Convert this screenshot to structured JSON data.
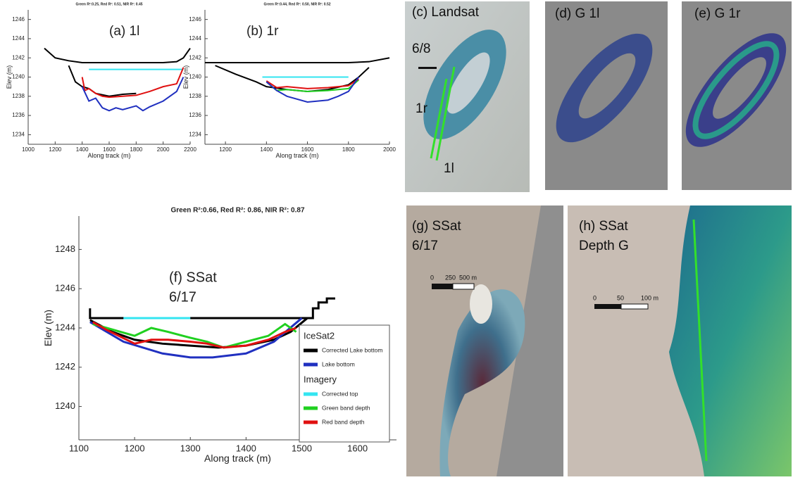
{
  "chart_data": [
    {
      "type": "line",
      "title": "Green R²:0.25, Red R²: 0.51, NIR R²: 0.45",
      "annotation": "(a) 1l",
      "x_label": "Along track (m)",
      "y_label": "Elev (m)",
      "xlim": [
        1000,
        2200
      ],
      "xticks": [
        1000,
        1200,
        1400,
        1600,
        1800,
        2000,
        2200
      ],
      "ylim": [
        1233,
        1247
      ],
      "yticks": [
        1234,
        1236,
        1238,
        1240,
        1242,
        1244,
        1246
      ],
      "series": [
        {
          "color": "#000000",
          "x": [
            1120,
            1200,
            1300,
            1400,
            1500,
            1600,
            1700,
            1800,
            1900,
            2000,
            2100,
            2150,
            2200
          ],
          "values": [
            1243,
            1242,
            1241.7,
            1241.5,
            1241.5,
            1241.5,
            1241.5,
            1241.5,
            1241.5,
            1241.5,
            1241.6,
            1242,
            1243
          ]
        },
        {
          "color": "#000000",
          "x": [
            1300,
            1350,
            1400,
            1450,
            1500,
            1600,
            1700,
            1800
          ],
          "values": [
            1241.2,
            1239.5,
            1239,
            1238.8,
            1238.3,
            1238,
            1238.2,
            1238.3
          ]
        },
        {
          "color": "#33e5f0",
          "x": [
            1450,
            2150
          ],
          "values": [
            1240.8,
            1240.8
          ]
        },
        {
          "color": "#e01010",
          "x": [
            1400,
            1420,
            1450,
            1500,
            1550,
            1600,
            1700,
            1800,
            1900,
            2000,
            2100,
            2150
          ],
          "values": [
            1240,
            1238.6,
            1238.8,
            1238.3,
            1238,
            1237.9,
            1238,
            1238.1,
            1238.5,
            1239,
            1239.3,
            1241
          ]
        },
        {
          "color": "#2030c0",
          "x": [
            1400,
            1450,
            1500,
            1550,
            1600,
            1650,
            1700,
            1800,
            1850,
            1900,
            2000,
            2100,
            2150
          ],
          "values": [
            1239,
            1237.5,
            1237.8,
            1236.8,
            1236.5,
            1236.8,
            1236.6,
            1237,
            1236.5,
            1236.9,
            1237.5,
            1238.5,
            1240
          ]
        }
      ]
    },
    {
      "type": "line",
      "title": "Green R²:0.44, Red R²: 0.50, NIR R²: 0.52",
      "annotation": "(b) 1r",
      "x_label": "Along track (m)",
      "y_label": "Elev (m)",
      "xlim": [
        1100,
        2000
      ],
      "xticks": [
        1200,
        1400,
        1600,
        1800,
        2000
      ],
      "ylim": [
        1233,
        1247
      ],
      "yticks": [
        1234,
        1236,
        1238,
        1240,
        1242,
        1244,
        1246
      ],
      "series": [
        {
          "color": "#000000",
          "x": [
            1100,
            1200,
            1400,
            1600,
            1800,
            1900,
            2000
          ],
          "values": [
            1241.5,
            1241.5,
            1241.5,
            1241.5,
            1241.5,
            1241.6,
            1242
          ]
        },
        {
          "color": "#000000",
          "x": [
            1150,
            1250,
            1350,
            1400,
            1500,
            1600,
            1700,
            1800,
            1850,
            1900
          ],
          "values": [
            1241.2,
            1240.3,
            1239.5,
            1239,
            1238.7,
            1238.5,
            1238.7,
            1239.2,
            1240,
            1241
          ]
        },
        {
          "color": "#33e5f0",
          "x": [
            1380,
            1800
          ],
          "values": [
            1240,
            1240
          ]
        },
        {
          "color": "#20d020",
          "x": [
            1400,
            1450,
            1500,
            1600,
            1700,
            1800,
            1850
          ],
          "values": [
            1239.5,
            1238.6,
            1238.7,
            1238.5,
            1238.6,
            1238.8,
            1239.7
          ]
        },
        {
          "color": "#e01010",
          "x": [
            1400,
            1450,
            1500,
            1600,
            1700,
            1800,
            1850
          ],
          "values": [
            1239.6,
            1238.9,
            1239,
            1238.8,
            1238.9,
            1239.1,
            1239.8
          ]
        },
        {
          "color": "#2030c0",
          "x": [
            1400,
            1450,
            1500,
            1600,
            1700,
            1750,
            1800,
            1850
          ],
          "values": [
            1239.5,
            1238.6,
            1238,
            1237.4,
            1237.6,
            1238,
            1238.5,
            1240
          ]
        }
      ]
    },
    {
      "type": "line",
      "title": "Green R²:0.66, Red R²: 0.86, NIR R²: 0.87",
      "annotation": [
        "(f) SSat",
        "6/17"
      ],
      "x_label": "Along track (m)",
      "y_label": "Elev (m)",
      "xlim": [
        1100,
        1670
      ],
      "xticks": [
        1100,
        1200,
        1300,
        1400,
        1500,
        1600
      ],
      "ylim": [
        1238.3,
        1249.7
      ],
      "yticks": [
        1240,
        1242,
        1244,
        1246,
        1248
      ],
      "series": [
        {
          "color": "#000000",
          "x": [
            1120,
            1120,
            1520,
            1520,
            1530,
            1530,
            1545,
            1545,
            1560
          ],
          "values": [
            1245,
            1244.5,
            1244.5,
            1245,
            1245,
            1245.3,
            1245.3,
            1245.5,
            1245.5
          ]
        },
        {
          "name": "Corrected Lake bottom",
          "group": "IceSat2",
          "color": "#000000",
          "x": [
            1120,
            1160,
            1200,
            1250,
            1300,
            1350,
            1400,
            1450,
            1480,
            1510
          ],
          "values": [
            1244.4,
            1243.8,
            1243.4,
            1243.2,
            1243.1,
            1243,
            1243.1,
            1243.4,
            1243.8,
            1244.5
          ]
        },
        {
          "name": "Lake bottom",
          "group": "IceSat2",
          "color": "#2030c0",
          "x": [
            1120,
            1180,
            1250,
            1300,
            1340,
            1400,
            1450,
            1500
          ],
          "values": [
            1244.3,
            1243.3,
            1242.7,
            1242.5,
            1242.5,
            1242.7,
            1243.3,
            1244.5
          ]
        },
        {
          "name": "Corrected top",
          "group": "Imagery",
          "color": "#33e5f0",
          "x": [
            1180,
            1300
          ],
          "values": [
            1244.5,
            1244.5
          ]
        },
        {
          "name": "Green band depth",
          "group": "Imagery",
          "color": "#20d020",
          "x": [
            1125,
            1150,
            1200,
            1230,
            1260,
            1300,
            1330,
            1360,
            1400,
            1440,
            1470,
            1490
          ],
          "values": [
            1244.2,
            1244,
            1243.6,
            1244,
            1243.8,
            1243.5,
            1243.3,
            1243,
            1243.3,
            1243.6,
            1244.2,
            1243.8
          ]
        },
        {
          "name": "Red band depth",
          "group": "Imagery",
          "color": "#e01010",
          "x": [
            1125,
            1150,
            1200,
            1230,
            1260,
            1300,
            1330,
            1360,
            1400,
            1440,
            1470,
            1490
          ],
          "values": [
            1244.3,
            1243.9,
            1243.2,
            1243.4,
            1243.4,
            1243.3,
            1243.2,
            1243,
            1243.1,
            1243.4,
            1243.8,
            1244
          ]
        }
      ]
    }
  ],
  "panels": [
    {
      "label": "(c) Landsat",
      "date": "6/8",
      "tracks": [
        "1r",
        "1l"
      ]
    },
    {
      "label": "(d) G 1l"
    },
    {
      "label": "(e) G 1r"
    },
    {
      "label": "(g)  SSat",
      "date": "6/17",
      "scale": [
        "0",
        "250",
        "500 m"
      ]
    },
    {
      "label": "(h)  SSat",
      "sublabel": "Depth G",
      "scale": [
        "0",
        "50",
        "100 m"
      ]
    }
  ]
}
